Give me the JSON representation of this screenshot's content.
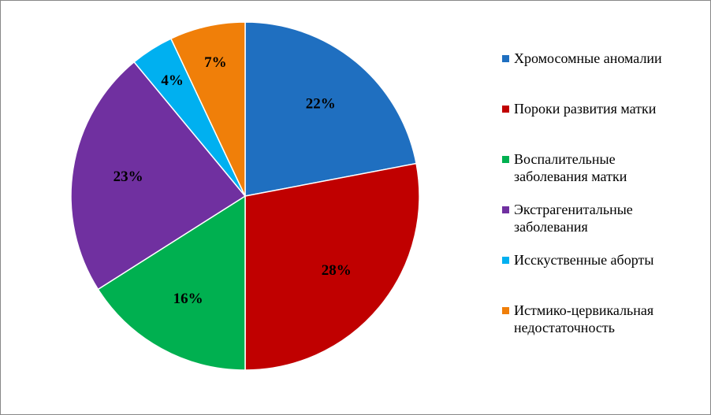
{
  "chart_data": {
    "type": "pie",
    "categories": [
      "Хромосомные аномалии",
      "Пороки развития матки",
      "Воспалительные заболевания матки",
      "Экстрагенитальные заболевания",
      "Исскуственные аборты",
      "Истмико-цервикальная недостаточность"
    ],
    "values": [
      22,
      28,
      16,
      23,
      4,
      7
    ],
    "value_labels": [
      "22%",
      "28%",
      "16%",
      "23%",
      "4%",
      "7%"
    ],
    "colors": [
      "#1f6fc0",
      "#c00000",
      "#00b050",
      "#7030a0",
      "#00b0f0",
      "#f07f09"
    ],
    "legend": "right"
  }
}
